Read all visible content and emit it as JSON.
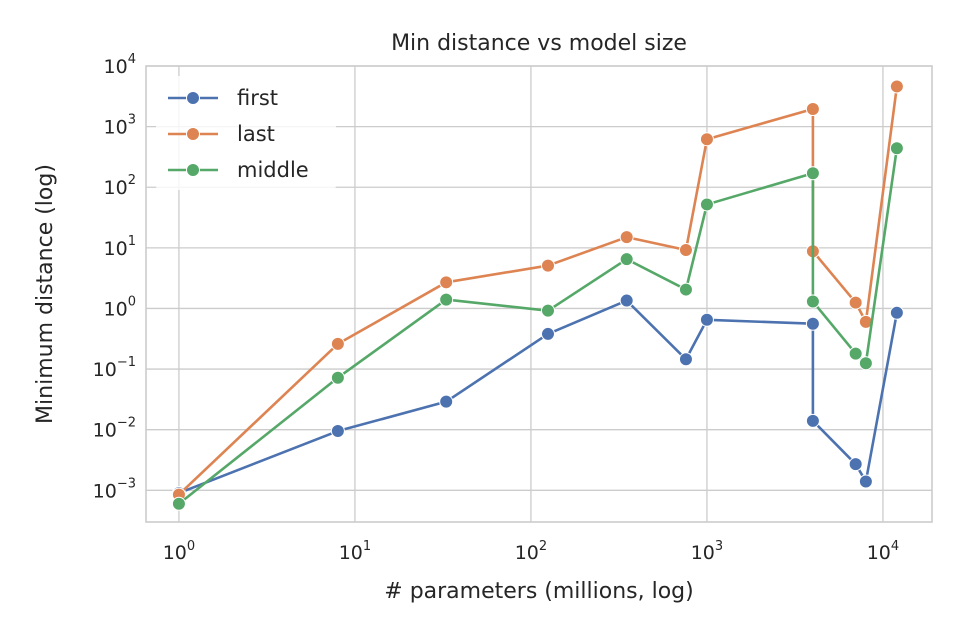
{
  "chart_data": {
    "type": "line",
    "title": "Min distance vs model size",
    "xlabel": "# parameters (millions, log)",
    "ylabel": "Minimum distance (log)",
    "xscale": "log",
    "yscale": "log",
    "xlim": [
      0.65,
      19000
    ],
    "ylim": [
      0.0003,
      10000
    ],
    "x_ticks": [
      {
        "value": 1,
        "base": "10",
        "exp": "0"
      },
      {
        "value": 10,
        "base": "10",
        "exp": "1"
      },
      {
        "value": 100,
        "base": "10",
        "exp": "2"
      },
      {
        "value": 1000,
        "base": "10",
        "exp": "3"
      },
      {
        "value": 10000,
        "base": "10",
        "exp": "4"
      }
    ],
    "y_ticks": [
      {
        "value": 0.001,
        "base": "10",
        "exp": "−3"
      },
      {
        "value": 0.01,
        "base": "10",
        "exp": "−2"
      },
      {
        "value": 0.1,
        "base": "10",
        "exp": "−1"
      },
      {
        "value": 1,
        "base": "10",
        "exp": "0"
      },
      {
        "value": 10,
        "base": "10",
        "exp": "1"
      },
      {
        "value": 100,
        "base": "10",
        "exp": "2"
      },
      {
        "value": 1000,
        "base": "10",
        "exp": "3"
      },
      {
        "value": 10000,
        "base": "10",
        "exp": "4"
      }
    ],
    "grid": true,
    "legend_position": "top-left",
    "x": [
      1,
      8,
      33,
      125,
      350,
      760,
      1000,
      4000,
      4000,
      7000,
      8000,
      12000
    ],
    "series": [
      {
        "name": "first",
        "color": "#4c72b0",
        "values": [
          0.0009,
          0.0095,
          0.029,
          0.38,
          1.35,
          0.145,
          0.65,
          0.56,
          0.014,
          0.0027,
          0.0014,
          0.85
        ]
      },
      {
        "name": "last",
        "color": "#dd8452",
        "values": [
          0.00085,
          0.26,
          2.7,
          5.1,
          15,
          9.2,
          620,
          1950,
          8.8,
          1.25,
          0.6,
          4600
        ]
      },
      {
        "name": "middle",
        "color": "#55a868",
        "values": [
          0.0006,
          0.072,
          1.4,
          0.92,
          6.5,
          2.05,
          52,
          170,
          1.3,
          0.18,
          0.125,
          440
        ]
      }
    ]
  }
}
